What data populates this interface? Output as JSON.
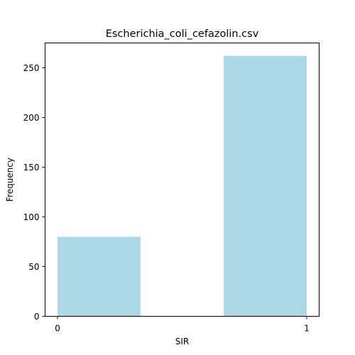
{
  "chart_data": {
    "type": "bar",
    "title": "Escherichia_coli_cefazolin.csv",
    "xlabel": "SIR",
    "ylabel": "Frequency",
    "xlim": [
      -0.05,
      1.05
    ],
    "ylim": [
      0,
      275
    ],
    "xticks": [
      0,
      1
    ],
    "yticks": [
      0,
      50,
      100,
      150,
      200,
      250
    ],
    "bars": [
      {
        "x0": 0.0,
        "x1": 0.333,
        "value": 80
      },
      {
        "x0": 0.667,
        "x1": 1.0,
        "value": 262
      }
    ],
    "bar_color": "#add8e6",
    "grid": false,
    "legend": "none"
  }
}
